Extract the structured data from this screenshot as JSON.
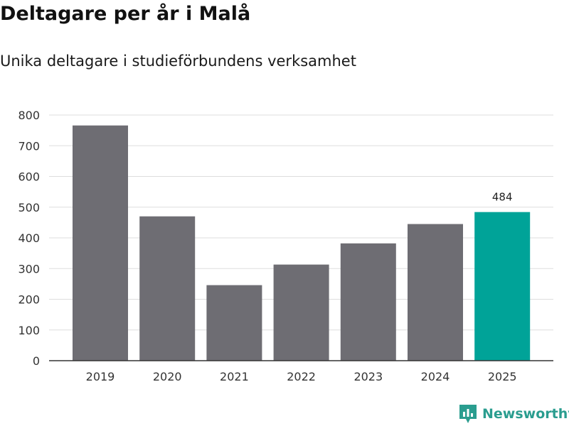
{
  "title": "Deltagare per år i Malå",
  "subtitle": "Unika deltagare i studieförbundens verksamhet",
  "brand": {
    "name": "Newsworthy",
    "icon": "newsworthy-logo-icon",
    "color": "#2a9d8f"
  },
  "colors": {
    "bar": "#6e6d73",
    "highlight": "#00a398",
    "grid": "#dddddd",
    "axis": "#333333"
  },
  "chart_data": {
    "type": "bar",
    "title": "Deltagare per år i Malå",
    "subtitle": "Unika deltagare i studieförbundens verksamhet",
    "xlabel": "",
    "ylabel": "",
    "categories": [
      "2019",
      "2020",
      "2021",
      "2022",
      "2023",
      "2024",
      "2025"
    ],
    "values": [
      766,
      470,
      246,
      313,
      382,
      445,
      484
    ],
    "highlight_index": 6,
    "data_labels": [
      {
        "index": 6,
        "text": "484"
      }
    ],
    "ylim": [
      0,
      800
    ],
    "yticks": [
      0,
      100,
      200,
      300,
      400,
      500,
      600,
      700,
      800
    ],
    "grid": true,
    "legend": "none"
  }
}
